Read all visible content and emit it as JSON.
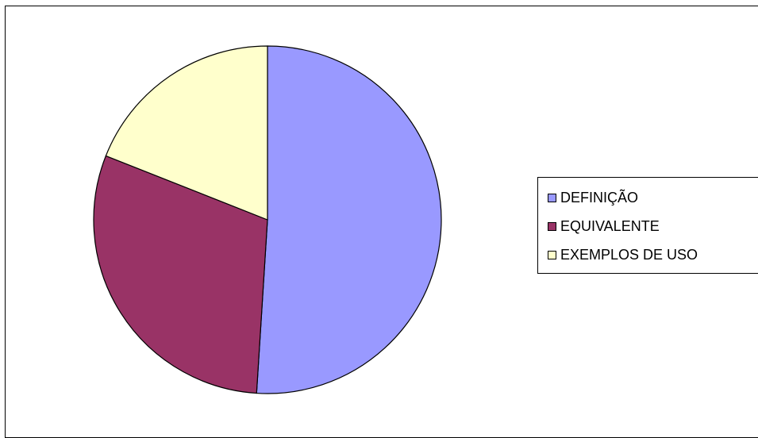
{
  "chart_data": {
    "type": "pie",
    "title": "",
    "start_angle_deg": 0,
    "direction": "clockwise",
    "legend_position": "right",
    "slices": [
      {
        "label": "DEFINIÇÃO",
        "value": 51,
        "color": "#9999ff"
      },
      {
        "label": "EQUIVALENTE",
        "value": 30,
        "color": "#993366"
      },
      {
        "label": "EXEMPLOS DE USO",
        "value": 19,
        "color": "#ffffcc"
      }
    ]
  }
}
